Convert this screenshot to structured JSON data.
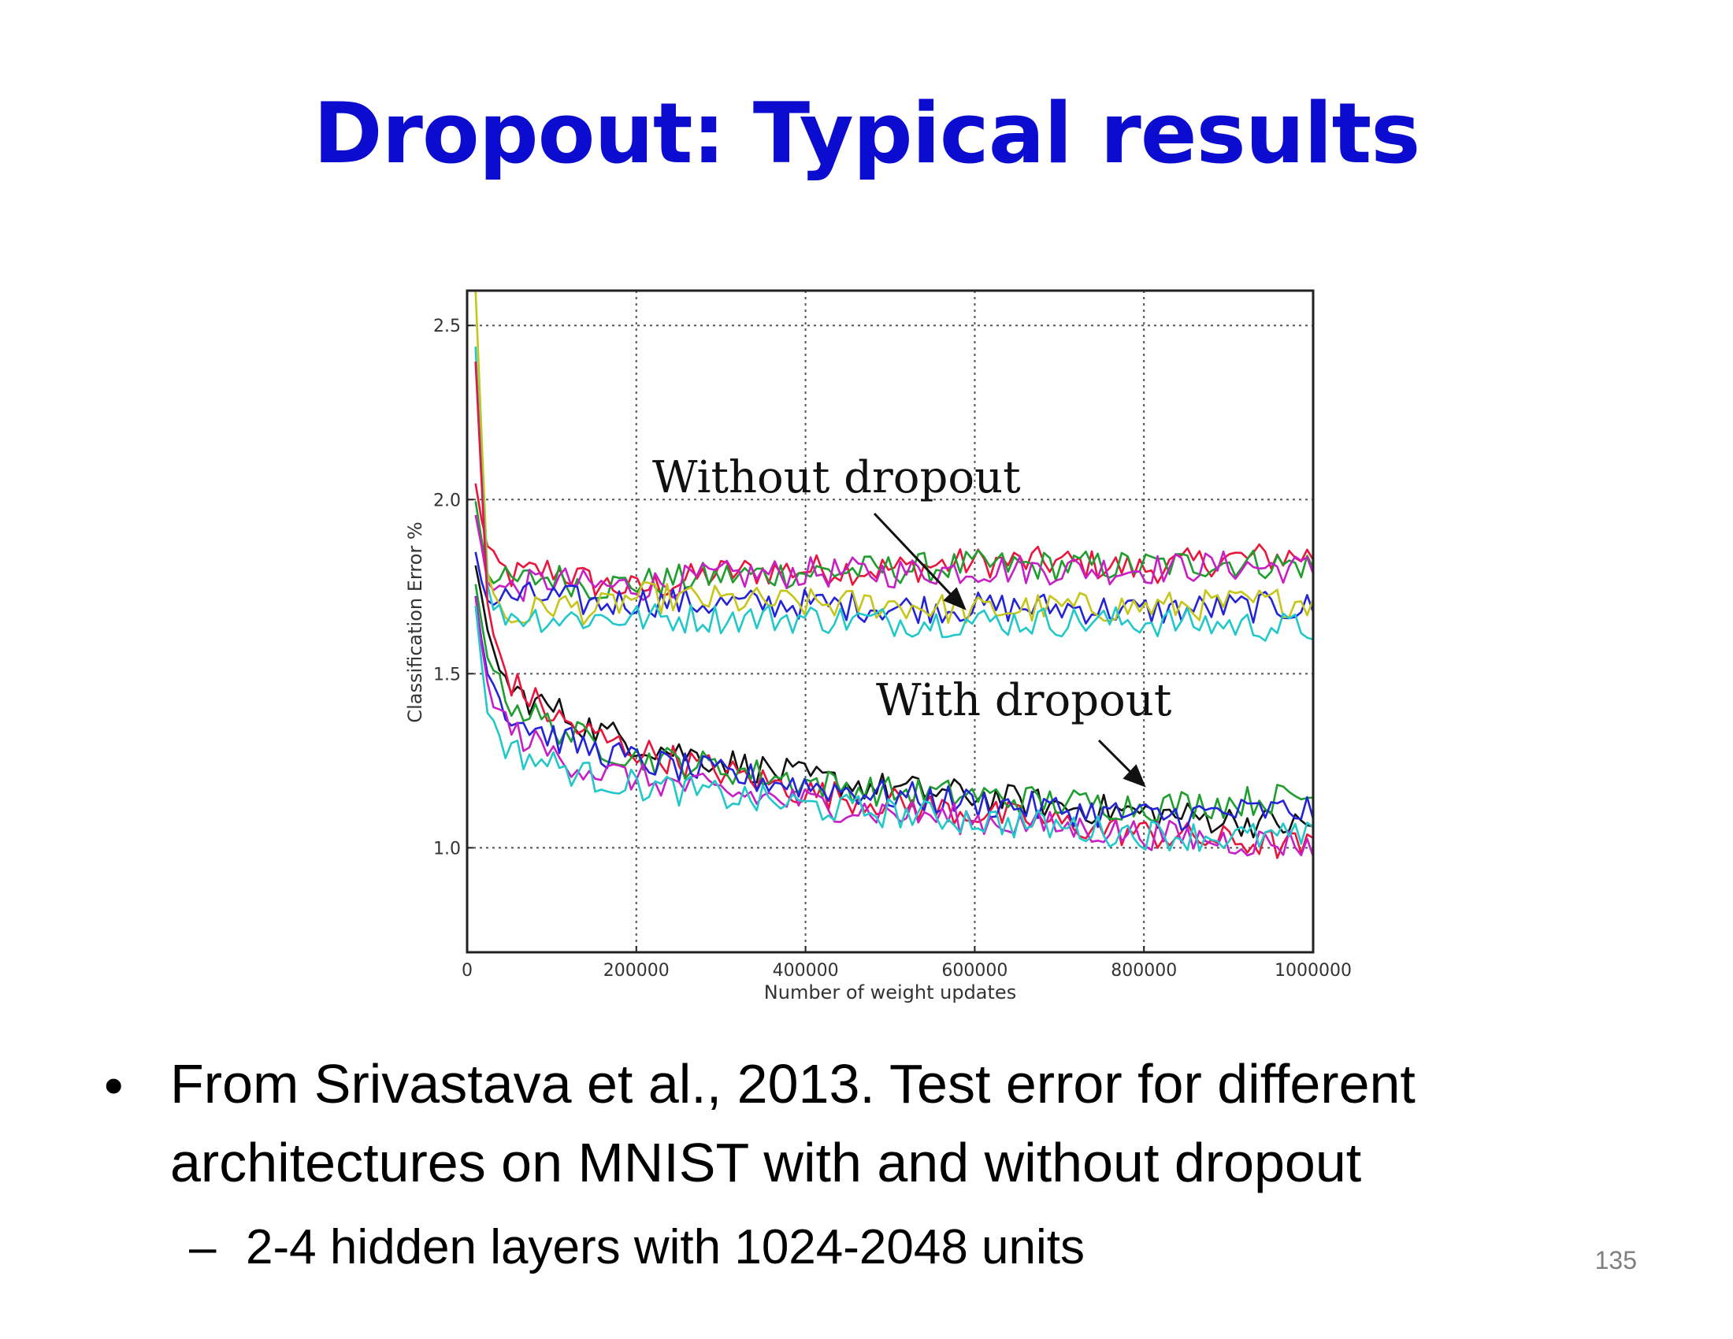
{
  "slide": {
    "title": "Dropout: Typical results",
    "page_number": "135"
  },
  "bullets": [
    {
      "text_line1": "From Srivastava et al., 2013.  Test error for different",
      "text_line2": "architectures on MNIST with and without dropout",
      "sub": "2-4 hidden layers with 1024-2048 units"
    }
  ],
  "chart_data": {
    "type": "line",
    "title": "",
    "xlabel": "Number of weight updates",
    "ylabel": "Classification Error %",
    "xlim": [
      0,
      1000000
    ],
    "ylim": [
      0.7,
      2.6
    ],
    "xticks": [
      "0",
      "200000",
      "400000",
      "600000",
      "800000",
      "1000000"
    ],
    "yticks": [
      "1.0",
      "1.5",
      "2.0",
      "2.5"
    ],
    "grid": true,
    "annotations": [
      "Without dropout",
      "With dropout"
    ],
    "series": [
      {
        "group": "without",
        "color": "#e8163c",
        "x": [
          10000,
          25000,
          50000,
          100000,
          150000,
          200000,
          300000,
          400000,
          500000,
          600000,
          700000,
          800000,
          900000,
          1000000
        ],
        "y": [
          2.04,
          1.85,
          1.78,
          1.8,
          1.76,
          1.74,
          1.79,
          1.8,
          1.8,
          1.82,
          1.82,
          1.8,
          1.83,
          1.84
        ]
      },
      {
        "group": "without",
        "color": "#1e9e2f",
        "x": [
          10000,
          25000,
          50000,
          100000,
          150000,
          200000,
          300000,
          400000,
          500000,
          600000,
          700000,
          800000,
          900000,
          1000000
        ],
        "y": [
          2.0,
          1.78,
          1.76,
          1.78,
          1.75,
          1.76,
          1.78,
          1.79,
          1.8,
          1.81,
          1.81,
          1.81,
          1.82,
          1.81
        ]
      },
      {
        "group": "without",
        "color": "#c71fc6",
        "x": [
          10000,
          25000,
          50000,
          100000,
          150000,
          200000,
          300000,
          400000,
          500000,
          600000,
          700000,
          800000,
          900000,
          1000000
        ],
        "y": [
          1.95,
          1.76,
          1.74,
          1.77,
          1.75,
          1.75,
          1.78,
          1.79,
          1.79,
          1.8,
          1.8,
          1.8,
          1.81,
          1.8
        ]
      },
      {
        "group": "without",
        "color": "#2323d8",
        "x": [
          10000,
          25000,
          50000,
          100000,
          150000,
          200000,
          300000,
          400000,
          500000,
          600000,
          700000,
          800000,
          900000,
          1000000
        ],
        "y": [
          1.85,
          1.7,
          1.72,
          1.72,
          1.7,
          1.71,
          1.7,
          1.7,
          1.69,
          1.69,
          1.69,
          1.68,
          1.69,
          1.69
        ]
      },
      {
        "group": "without",
        "color": "#c6c51a",
        "x": [
          10000,
          25000,
          50000,
          100000,
          150000,
          200000,
          300000,
          400000,
          500000,
          600000,
          700000,
          800000,
          900000,
          1000000
        ],
        "y": [
          2.6,
          1.75,
          1.65,
          1.7,
          1.68,
          1.72,
          1.71,
          1.7,
          1.7,
          1.68,
          1.69,
          1.69,
          1.7,
          1.71
        ]
      },
      {
        "group": "without",
        "color": "#22c7c9",
        "x": [
          10000,
          25000,
          50000,
          100000,
          150000,
          200000,
          300000,
          400000,
          500000,
          600000,
          700000,
          800000,
          900000,
          1000000
        ],
        "y": [
          2.45,
          1.7,
          1.67,
          1.66,
          1.66,
          1.66,
          1.66,
          1.66,
          1.65,
          1.65,
          1.65,
          1.65,
          1.64,
          1.63
        ]
      },
      {
        "group": "with",
        "color": "#111111",
        "x": [
          10000,
          25000,
          50000,
          100000,
          150000,
          200000,
          300000,
          400000,
          500000,
          600000,
          700000,
          800000,
          900000,
          1000000
        ],
        "y": [
          1.8,
          1.6,
          1.45,
          1.4,
          1.34,
          1.3,
          1.25,
          1.2,
          1.17,
          1.15,
          1.12,
          1.1,
          1.08,
          1.06
        ]
      },
      {
        "group": "with",
        "color": "#e8163c",
        "x": [
          10000,
          25000,
          50000,
          100000,
          150000,
          200000,
          300000,
          400000,
          500000,
          600000,
          700000,
          800000,
          900000,
          1000000
        ],
        "y": [
          2.4,
          1.65,
          1.48,
          1.38,
          1.32,
          1.28,
          1.22,
          1.16,
          1.13,
          1.1,
          1.07,
          1.04,
          1.02,
          1.0
        ]
      },
      {
        "group": "with",
        "color": "#1e9e2f",
        "x": [
          10000,
          25000,
          50000,
          100000,
          150000,
          200000,
          300000,
          400000,
          500000,
          600000,
          700000,
          800000,
          900000,
          1000000
        ],
        "y": [
          1.75,
          1.55,
          1.42,
          1.35,
          1.3,
          1.26,
          1.23,
          1.19,
          1.16,
          1.15,
          1.13,
          1.12,
          1.13,
          1.15
        ]
      },
      {
        "group": "with",
        "color": "#2323d8",
        "x": [
          10000,
          25000,
          50000,
          100000,
          150000,
          200000,
          300000,
          400000,
          500000,
          600000,
          700000,
          800000,
          900000,
          1000000
        ],
        "y": [
          1.72,
          1.5,
          1.38,
          1.32,
          1.28,
          1.25,
          1.21,
          1.18,
          1.15,
          1.13,
          1.11,
          1.09,
          1.1,
          1.11
        ]
      },
      {
        "group": "with",
        "color": "#c71fc6",
        "x": [
          10000,
          25000,
          50000,
          100000,
          150000,
          200000,
          300000,
          400000,
          500000,
          600000,
          700000,
          800000,
          900000,
          1000000
        ],
        "y": [
          1.7,
          1.45,
          1.34,
          1.27,
          1.22,
          1.2,
          1.16,
          1.13,
          1.1,
          1.08,
          1.06,
          1.04,
          1.02,
          1.01
        ]
      },
      {
        "group": "with",
        "color": "#22c7c9",
        "x": [
          10000,
          25000,
          50000,
          100000,
          150000,
          200000,
          300000,
          400000,
          500000,
          600000,
          700000,
          800000,
          900000,
          1000000
        ],
        "y": [
          1.68,
          1.38,
          1.28,
          1.24,
          1.2,
          1.18,
          1.15,
          1.12,
          1.1,
          1.08,
          1.06,
          1.04,
          1.03,
          1.03
        ]
      }
    ]
  }
}
